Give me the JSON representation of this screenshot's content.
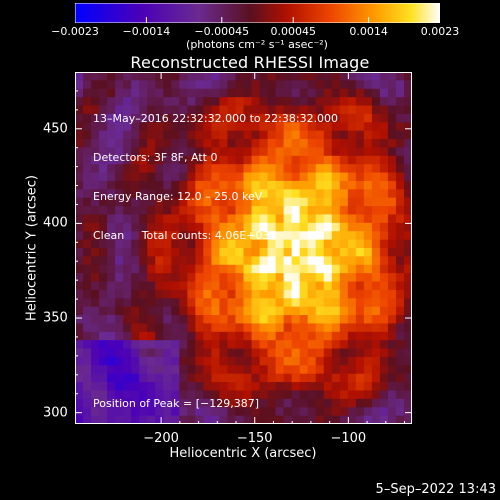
{
  "chart_data": {
    "type": "heatmap",
    "title": "Reconstructed RHESSI Image",
    "xlabel": "Heliocentric X (arcsec)",
    "ylabel": "Heliocentric Y (arcsec)",
    "xlim": [
      -246,
      -66
    ],
    "ylim": [
      294,
      480
    ],
    "x_ticks": [
      "−200",
      "−150",
      "−100"
    ],
    "x_tick_values": [
      -200,
      -150,
      -100
    ],
    "y_ticks": [
      "300",
      "350",
      "400",
      "450"
    ],
    "y_tick_values": [
      300,
      350,
      400,
      450
    ],
    "peak_position": [
      -129,
      387
    ],
    "colorbar": {
      "range": [
        -0.0023,
        0.0023
      ],
      "tick_labels": [
        "−0.0023",
        "−0.0014",
        "−0.00045",
        "0.00045",
        "0.0014",
        "0.0023"
      ],
      "tick_values": [
        -0.0023,
        -0.0014,
        -0.00045,
        0.00045,
        0.0014,
        0.0023
      ],
      "units": "(photons cm⁻² s⁻¹ asec⁻²)",
      "colormap": "rainbow-to-red-hot",
      "low_color": "#0000ff",
      "high_color": "#ffffff"
    },
    "annotations": [
      "13–May–2016 22:32:32.000 to 22:38:32.000",
      "Detectors: 3F 8F, Att 0",
      "Energy Range: 12.0 – 25.0 keV",
      "Clean     Total counts: 4.06E+03"
    ],
    "peak_label": "Position of Peak = [−129,387]",
    "grid": false
  },
  "timestamp": "5–Sep–2022 13:43"
}
